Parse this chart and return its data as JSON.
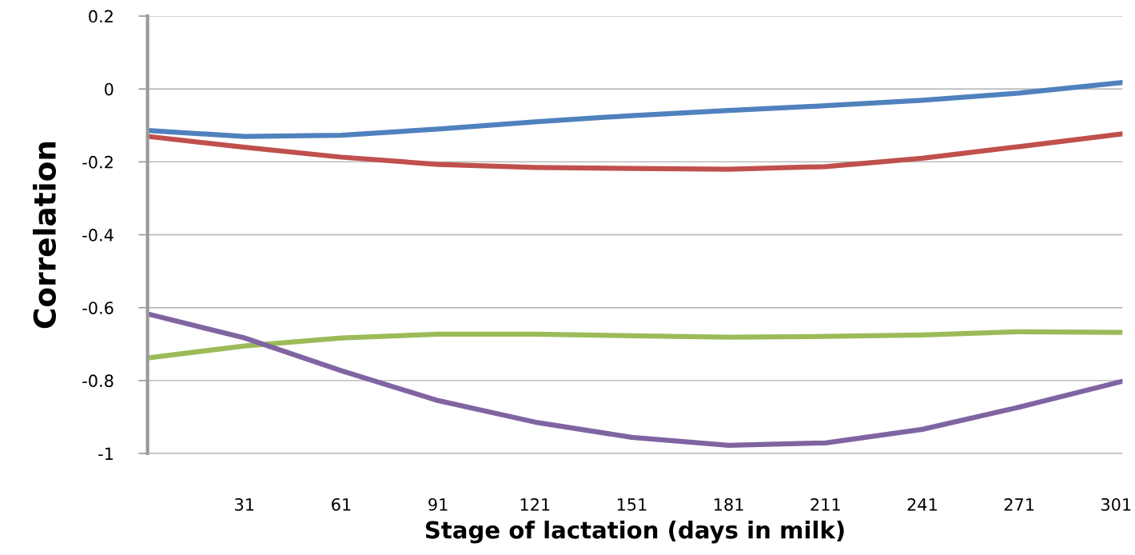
{
  "chart_data": {
    "type": "line",
    "xlabel": "Stage of lactation (days in milk)",
    "ylabel": "Correlation",
    "x": [
      1,
      31,
      61,
      91,
      121,
      151,
      181,
      211,
      241,
      271,
      303
    ],
    "xlim": [
      1,
      303
    ],
    "xticks": [
      31,
      61,
      91,
      121,
      151,
      181,
      211,
      241,
      271,
      301
    ],
    "ylim": [
      -1,
      0.2
    ],
    "yticks": [
      -1,
      -0.8,
      -0.6,
      -0.4,
      -0.2,
      0,
      0.2
    ],
    "grid": "y",
    "marker": "none",
    "line_style": "solid",
    "series": [
      {
        "color": "#4f81bd",
        "values": [
          -0.114,
          -0.13,
          -0.127,
          -0.11,
          -0.09,
          -0.073,
          -0.059,
          -0.046,
          -0.031,
          -0.011,
          0.018
        ]
      },
      {
        "color": "#c0504d",
        "values": [
          -0.13,
          -0.16,
          -0.187,
          -0.207,
          -0.215,
          -0.218,
          -0.22,
          -0.213,
          -0.19,
          -0.158,
          -0.123
        ]
      },
      {
        "color": "#9bbb59",
        "values": [
          -0.738,
          -0.705,
          -0.683,
          -0.673,
          -0.673,
          -0.677,
          -0.681,
          -0.679,
          -0.675,
          -0.666,
          -0.668
        ]
      },
      {
        "color": "#8064a2",
        "values": [
          -0.617,
          -0.683,
          -0.773,
          -0.855,
          -0.914,
          -0.956,
          -0.978,
          -0.971,
          -0.934,
          -0.873,
          -0.802
        ]
      }
    ]
  }
}
